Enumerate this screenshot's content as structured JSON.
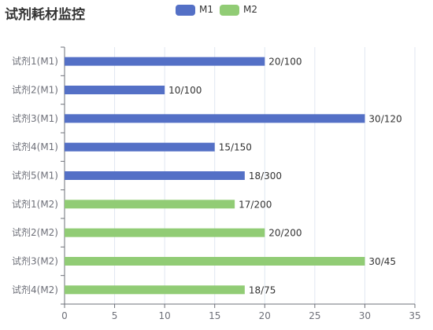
{
  "title": "试剂耗材监控",
  "legend": [
    {
      "name": "M1",
      "color": "#5470c6"
    },
    {
      "name": "M2",
      "color": "#91cc75"
    }
  ],
  "chart_data": {
    "type": "bar",
    "orientation": "horizontal",
    "title": "试剂耗材监控",
    "categories": [
      "试剂1(M1)",
      "试剂2(M1)",
      "试剂3(M1)",
      "试剂4(M1)",
      "试剂5(M1)",
      "试剂1(M2)",
      "试剂2(M2)",
      "试剂3(M2)",
      "试剂4(M2)"
    ],
    "values": [
      20,
      10,
      30,
      15,
      18,
      17,
      20,
      30,
      18
    ],
    "groups": [
      "M1",
      "M1",
      "M1",
      "M1",
      "M1",
      "M2",
      "M2",
      "M2",
      "M2"
    ],
    "data_labels": [
      "20/100",
      "10/100",
      "30/120",
      "15/150",
      "18/300",
      "17/200",
      "20/200",
      "30/45",
      "18/75"
    ],
    "series": [
      {
        "name": "M1",
        "color": "#5470c6"
      },
      {
        "name": "M2",
        "color": "#91cc75"
      }
    ],
    "xlim": [
      0,
      35
    ],
    "xticks": [
      0,
      5,
      10,
      15,
      20,
      25,
      30,
      35
    ],
    "grid": "vertical",
    "legend_position": "top-center"
  }
}
